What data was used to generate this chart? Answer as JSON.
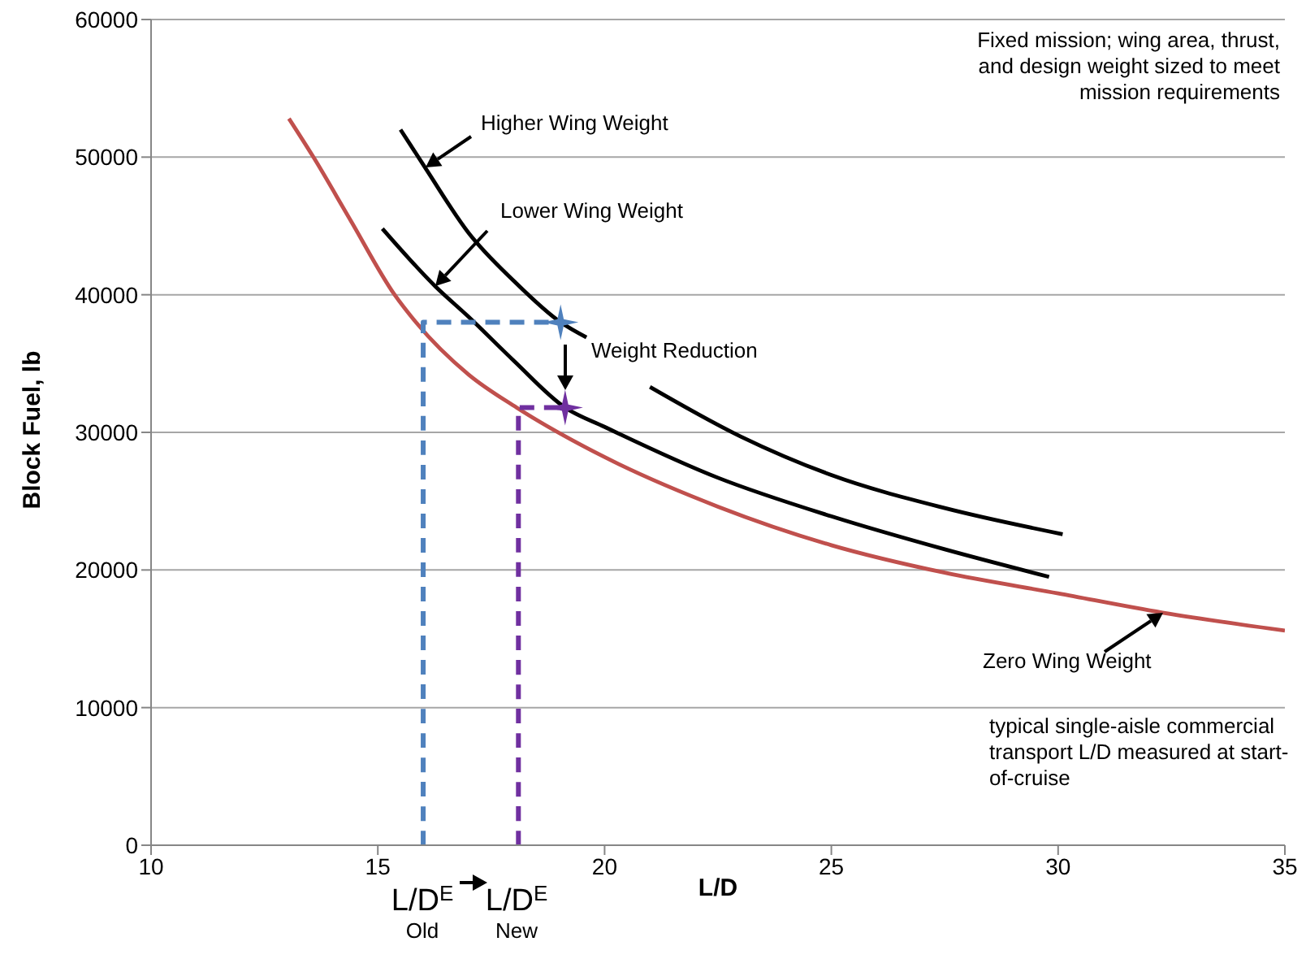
{
  "chart_data": {
    "type": "line",
    "xlabel": "L/D",
    "ylabel": "Block Fuel, lb",
    "xlim": [
      10,
      35
    ],
    "xticks": [
      10,
      15,
      20,
      25,
      30,
      35
    ],
    "ylim": [
      0,
      60000
    ],
    "yticks": [
      0,
      10000,
      20000,
      30000,
      40000,
      50000,
      60000
    ],
    "grid": "y",
    "marker": "none",
    "line_style": "solid",
    "series": [
      {
        "color": "#c0504d",
        "x": [
          13.04,
          13.58,
          14.4,
          15.37,
          15.84,
          17,
          18.06,
          20,
          22.5,
          25,
          27.5,
          30,
          32.3,
          35
        ],
        "values": [
          52800,
          50000,
          45400,
          40000,
          38000,
          34200,
          31800,
          28200,
          24600,
          21800,
          19800,
          18300,
          16900,
          15600
        ]
      },
      {
        "color": "#000000",
        "x": [
          15.1,
          16.27,
          17,
          18,
          19.13,
          20,
          22.5,
          25,
          27.5,
          29.8
        ],
        "values": [
          44800,
          40600,
          38400,
          35200,
          31800,
          30400,
          26700,
          23900,
          21500,
          19500
        ]
      },
      {
        "color": "#000000",
        "x": [
          15.5,
          16.05,
          17,
          18,
          19.03,
          19.6,
          20.3,
          21,
          23,
          25,
          27.5,
          30.1
        ],
        "values": [
          52000,
          49200,
          44500,
          41000,
          38000,
          36900,
          null,
          33300,
          29700,
          26900,
          24500,
          22600
        ]
      },
      {
        "color": "#4f81bd",
        "line_style": "dashed",
        "x": [
          16,
          16,
          19.03
        ],
        "values": [
          0,
          38000,
          38000
        ]
      },
      {
        "color": "#7030a0",
        "line_style": "dashed",
        "x": [
          18.1,
          18.1,
          19.13
        ],
        "values": [
          0,
          31800,
          31800
        ]
      },
      {
        "type": "scatter",
        "marker": "star",
        "colors": [
          "#4f81bd",
          "#7030a0"
        ],
        "x": [
          19.03,
          19.13
        ],
        "values": [
          38000,
          31800
        ]
      }
    ],
    "annotations": [
      "Higher Wing Weight",
      "Lower Wing Weight",
      "Zero Wing Weight",
      "Weight Reduction",
      "Fixed mission; wing area, thrust, and design weight sized to meet mission requirements",
      "typical single-aisle commercial transport L/D measured at start-of-cruise",
      "L/D$^{E}$ Old",
      "L/D$^{E}$ New"
    ]
  }
}
